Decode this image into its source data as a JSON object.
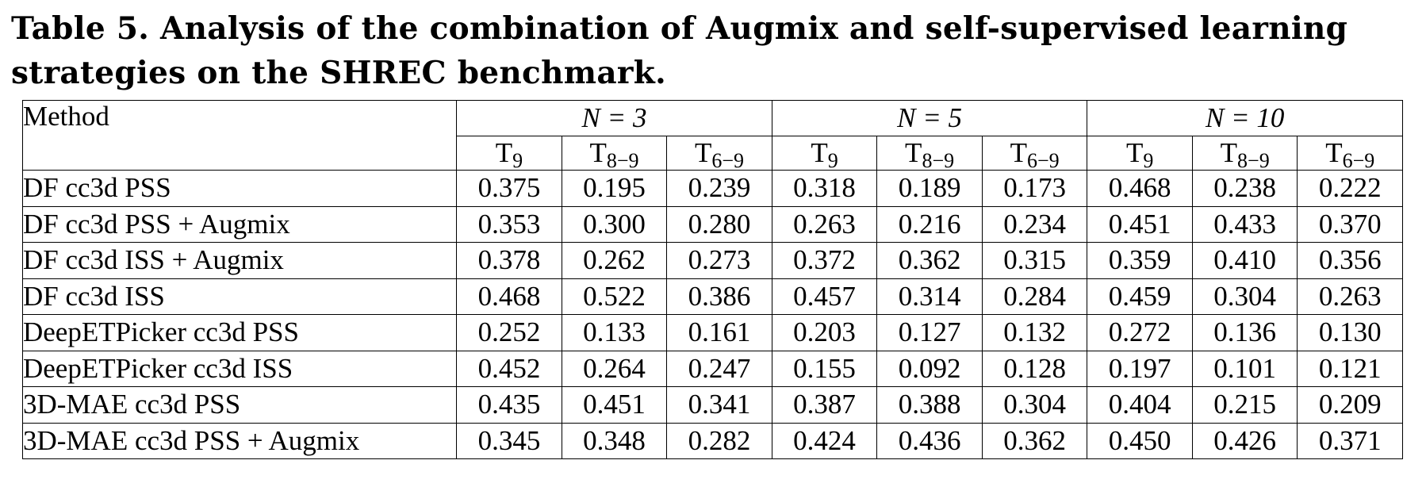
{
  "caption": {
    "line1": "Table 5. Analysis of the combination of Augmix and self-supervised learning",
    "line2": "strategies on the SHREC benchmark."
  },
  "table": {
    "method_header": "Method",
    "groups": [
      "N = 3",
      "N = 5",
      "N = 10"
    ],
    "subheaders": [
      {
        "base": "T",
        "sub": "9"
      },
      {
        "base": "T",
        "sub": "8−9"
      },
      {
        "base": "T",
        "sub": "6−9"
      }
    ],
    "rows": [
      {
        "method": "DF cc3d PSS",
        "values": [
          "0.375",
          "0.195",
          "0.239",
          "0.318",
          "0.189",
          "0.173",
          "0.468",
          "0.238",
          "0.222"
        ]
      },
      {
        "method": "DF cc3d PSS + Augmix",
        "values": [
          "0.353",
          "0.300",
          "0.280",
          "0.263",
          "0.216",
          "0.234",
          "0.451",
          "0.433",
          "0.370"
        ]
      },
      {
        "method": "DF cc3d ISS + Augmix",
        "values": [
          "0.378",
          "0.262",
          "0.273",
          "0.372",
          "0.362",
          "0.315",
          "0.359",
          "0.410",
          "0.356"
        ]
      },
      {
        "method": "DF cc3d ISS",
        "values": [
          "0.468",
          "0.522",
          "0.386",
          "0.457",
          "0.314",
          "0.284",
          "0.459",
          "0.304",
          "0.263"
        ]
      },
      {
        "method": "DeepETPicker cc3d PSS",
        "values": [
          "0.252",
          "0.133",
          "0.161",
          "0.203",
          "0.127",
          "0.132",
          "0.272",
          "0.136",
          "0.130"
        ]
      },
      {
        "method": "DeepETPicker cc3d ISS",
        "values": [
          "0.452",
          "0.264",
          "0.247",
          "0.155",
          "0.092",
          "0.128",
          "0.197",
          "0.101",
          "0.121"
        ]
      },
      {
        "method": "3D-MAE cc3d PSS",
        "values": [
          "0.435",
          "0.451",
          "0.341",
          "0.387",
          "0.388",
          "0.304",
          "0.404",
          "0.215",
          "0.209"
        ]
      },
      {
        "method": "3D-MAE cc3d PSS + Augmix",
        "values": [
          "0.345",
          "0.348",
          "0.282",
          "0.424",
          "0.436",
          "0.362",
          "0.450",
          "0.426",
          "0.371"
        ]
      }
    ]
  }
}
